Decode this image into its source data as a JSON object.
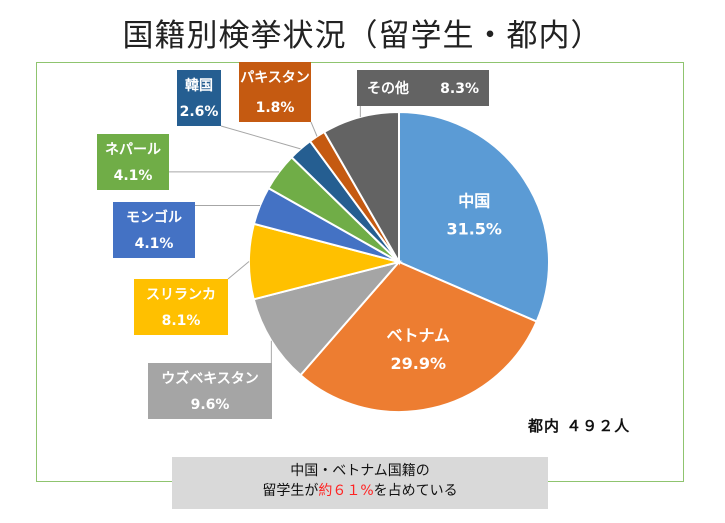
{
  "title": "国籍別検挙状況（留学生・都内）",
  "total_label": "都内 ４９２人",
  "callout": {
    "line1": "中国・ベトナム国籍の",
    "line2_prefix": "留学生が",
    "line2_highlight": "約６１%",
    "line2_suffix": "を占めている"
  },
  "chart_data": {
    "type": "pie",
    "start_angle_deg": 0,
    "direction": "clockwise",
    "slices": [
      {
        "label": "中国",
        "value": 31.5,
        "value_label": "31.5%",
        "color": "#5b9bd5"
      },
      {
        "label": "ベトナム",
        "value": 29.9,
        "value_label": "29.9%",
        "color": "#ed7d31"
      },
      {
        "label": "ウズベキスタン",
        "value": 9.6,
        "value_label": "9.6%",
        "color": "#a5a5a5"
      },
      {
        "label": "スリランカ",
        "value": 8.1,
        "value_label": "8.1%",
        "color": "#ffc000"
      },
      {
        "label": "モンゴル",
        "value": 4.1,
        "value_label": "4.1%",
        "color": "#4472c4"
      },
      {
        "label": "ネパール",
        "value": 4.1,
        "value_label": "4.1%",
        "color": "#70ad47"
      },
      {
        "label": "韓国",
        "value": 2.6,
        "value_label": "2.6%",
        "color": "#255e91"
      },
      {
        "label": "パキスタン",
        "value": 1.8,
        "value_label": "1.8%",
        "color": "#c55a11"
      },
      {
        "label": "その他",
        "value": 8.3,
        "value_label": "8.3%",
        "color": "#636363"
      }
    ]
  }
}
